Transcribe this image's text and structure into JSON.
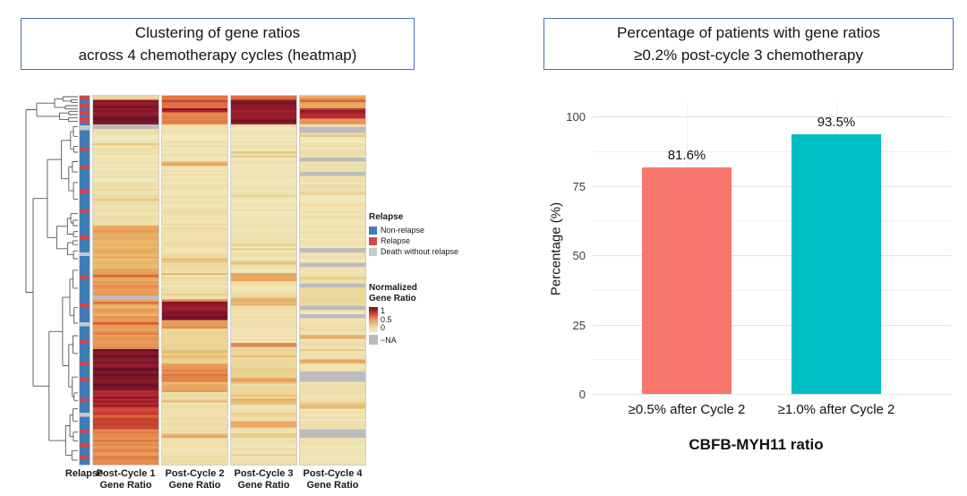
{
  "figure": {
    "left_title_line1": "Clustering of gene ratios",
    "left_title_line2": "across 4 chemotherapy cycles (heatmap)",
    "right_title_line1": "Percentage of patients with gene ratios",
    "right_title_line2": "≥0.2% post-cycle 3 chemotherapy",
    "title_border_color": "#4a6fb5",
    "background": "#ffffff"
  },
  "chart_data": [
    {
      "type": "heatmap",
      "title": "Clustering of gene ratios across 4 chemotherapy cycles (heatmap)",
      "dendrogram": "rows-left",
      "dendrogram_color": "#555555",
      "annotation_column_label": "Relapse",
      "column_labels": [
        [
          "Post-Cycle 1",
          "Gene Ratio"
        ],
        [
          "Post-Cycle 2",
          "Gene Ratio"
        ],
        [
          "Post-Cycle 3",
          "Gene Ratio"
        ],
        [
          "Post-Cycle 4",
          "Gene Ratio"
        ]
      ],
      "relapse_legend": {
        "title": "Relapse",
        "items": [
          {
            "label": "Non-relapse",
            "color": "#3f7db8",
            "key": "N"
          },
          {
            "label": "Relapse",
            "color": "#d2464e",
            "key": "R"
          },
          {
            "label": "Death without relapse",
            "color": "#c8c8c8",
            "key": "D"
          }
        ]
      },
      "value_legend": {
        "title_line1": "Normalized",
        "title_line2": "Gene Ratio",
        "ticks": [
          "1",
          "0.5",
          "0"
        ],
        "na_label": "−NA"
      },
      "colormap_stops": [
        [
          0,
          "#f2ecc4"
        ],
        [
          0.25,
          "#ebd395"
        ],
        [
          0.4,
          "#e8b869"
        ],
        [
          0.55,
          "#e68a4f"
        ],
        [
          0.7,
          "#d75433"
        ],
        [
          0.85,
          "#ab2030"
        ],
        [
          1,
          "#671226"
        ]
      ],
      "na_color": "#bcbcbf",
      "annotation_segments": [
        [
          "R",
          1.2
        ],
        [
          "N",
          0.7
        ],
        [
          "R",
          1.3
        ],
        [
          "N",
          0.7
        ],
        [
          "R",
          1.1
        ],
        [
          "N",
          0.6
        ],
        [
          "R",
          1.4
        ],
        [
          "N",
          0.7
        ],
        [
          "D",
          1.3
        ],
        [
          "N",
          4.5
        ],
        [
          "R",
          0.9
        ],
        [
          "N",
          3.8
        ],
        [
          "R",
          0.9
        ],
        [
          "N",
          5.5
        ],
        [
          "R",
          0.9
        ],
        [
          "N",
          4.2
        ],
        [
          "R",
          0.9
        ],
        [
          "N",
          6.0
        ],
        [
          "R",
          0.9
        ],
        [
          "N",
          3.5
        ],
        [
          "D",
          1.0
        ],
        [
          "N",
          5.0
        ],
        [
          "R",
          0.9
        ],
        [
          "N",
          6.5
        ],
        [
          "R",
          0.9
        ],
        [
          "N",
          4.0
        ],
        [
          "D",
          1.1
        ],
        [
          "N",
          3.6
        ],
        [
          "R",
          0.9
        ],
        [
          "N",
          4.8
        ],
        [
          "R",
          0.9
        ],
        [
          "N",
          3.2
        ],
        [
          "R",
          0.9
        ],
        [
          "N",
          4.6
        ],
        [
          "R",
          0.9
        ],
        [
          "N",
          2.8
        ],
        [
          "D",
          1.0
        ],
        [
          "N",
          3.4
        ],
        [
          "R",
          0.9
        ],
        [
          "N",
          2.6
        ],
        [
          "R",
          1.1
        ],
        [
          "N",
          2.2
        ],
        [
          "R",
          0.9
        ],
        [
          "N",
          1.5
        ]
      ],
      "columns": [
        {
          "name": "Post-Cycle 1 Gene Ratio",
          "segments": [
            [
              1.2,
              0.25
            ],
            [
              6.5,
              0.95
            ],
            [
              1.4,
              "NA"
            ],
            [
              15,
              0.08
            ],
            [
              11,
              0.13
            ],
            [
              11.5,
              0.42
            ],
            [
              7.5,
              0.5
            ],
            [
              0.8,
              "NA"
            ],
            [
              4.7,
              0.45
            ],
            [
              8.7,
              0.52
            ],
            [
              11.3,
              0.95
            ],
            [
              4.5,
              0.88
            ],
            [
              6,
              0.72
            ],
            [
              9.9,
              0.55
            ]
          ]
        },
        {
          "name": "Post-Cycle 2 Gene Ratio",
          "segments": [
            [
              1.2,
              0.55
            ],
            [
              1.9,
              0.68
            ],
            [
              1.2,
              0.9
            ],
            [
              3.4,
              0.6
            ],
            [
              9.8,
              0.08
            ],
            [
              1.5,
              0.42
            ],
            [
              12,
              0.1
            ],
            [
              24,
              0.14
            ],
            [
              0.7,
              0.6
            ],
            [
              4.6,
              0.92
            ],
            [
              2.4,
              0.5
            ],
            [
              9.3,
              0.25
            ],
            [
              5,
              0.55
            ],
            [
              3,
              0.45
            ],
            [
              2,
              0.15
            ],
            [
              1,
              0.45
            ],
            [
              8,
              0.14
            ],
            [
              1,
              0.4
            ],
            [
              8,
              0.12
            ]
          ]
        },
        {
          "name": "Post-Cycle 3 Gene Ratio",
          "segments": [
            [
              1.2,
              0.62
            ],
            [
              6.5,
              0.92
            ],
            [
              40.3,
              0.09
            ],
            [
              2,
              0.45
            ],
            [
              4.2,
              0.12
            ],
            [
              2.4,
              0.4
            ],
            [
              9.9,
              0.13
            ],
            [
              1.3,
              0.6
            ],
            [
              8.2,
              0.22
            ],
            [
              1.2,
              0.45
            ],
            [
              4.6,
              0.18
            ],
            [
              1.4,
              0.4
            ],
            [
              4.3,
              0.12
            ],
            [
              2,
              0.45
            ],
            [
              10.5,
              0.1
            ]
          ]
        },
        {
          "name": "Post-Cycle 4 Gene Ratio",
          "segments": [
            [
              3.6,
              0.5
            ],
            [
              2.4,
              0.85
            ],
            [
              1.7,
              0.5
            ],
            [
              0.7,
              0.1
            ],
            [
              1.7,
              "NA"
            ],
            [
              6.7,
              0.1
            ],
            [
              1.2,
              "NA"
            ],
            [
              2.4,
              0.12
            ],
            [
              1.2,
              "NA"
            ],
            [
              19.4,
              0.1
            ],
            [
              1.2,
              "NA"
            ],
            [
              2.8,
              0.1
            ],
            [
              1.2,
              "NA"
            ],
            [
              4.4,
              0.12
            ],
            [
              1.2,
              "NA"
            ],
            [
              4.8,
              0.2
            ],
            [
              1.2,
              "NA"
            ],
            [
              1.2,
              0.1
            ],
            [
              1.2,
              "NA"
            ],
            [
              4.1,
              0.12
            ],
            [
              1.2,
              0.45
            ],
            [
              5.5,
              0.1
            ],
            [
              1.2,
              0.4
            ],
            [
              2.5,
              0.1
            ],
            [
              2.4,
              "NA"
            ],
            [
              5.9,
              0.12
            ],
            [
              1.2,
              0.35
            ],
            [
              5.6,
              0.1
            ],
            [
              2.4,
              "NA"
            ],
            [
              7.8,
              0.1
            ]
          ]
        }
      ]
    },
    {
      "type": "bar",
      "categories": [
        "≥0.5% after Cycle 2",
        "≥1.0% after Cycle 2"
      ],
      "values": [
        81.6,
        93.5
      ],
      "bar_labels": [
        "81.6%",
        "93.5%"
      ],
      "colors": [
        "#F8766D",
        "#00BFC4"
      ],
      "ylabel": "Percentage (%)",
      "xlabel": "CBFB-MYH11 ratio",
      "ylim": [
        0,
        100
      ],
      "yticks": [
        0,
        25,
        50,
        75,
        100
      ],
      "grid": true,
      "major_grid_color": "#e4e4e4",
      "minor_grid_color": "#f1f1f1",
      "legend_position": "none"
    }
  ]
}
